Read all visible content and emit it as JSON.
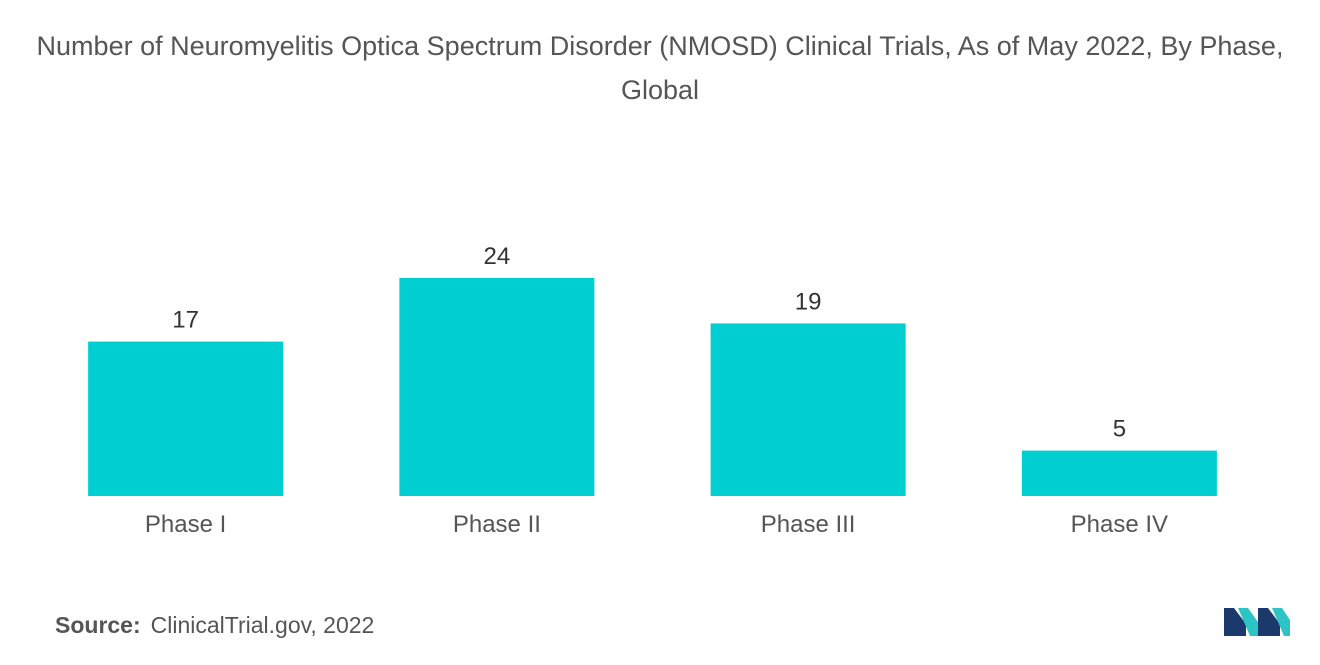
{
  "chart_data": {
    "type": "bar",
    "title": "Number of Neuromyelitis Optica Spectrum Disorder (NMOSD) Clinical Trials, As of May 2022, By Phase, Global",
    "categories": [
      "Phase I",
      "Phase II",
      "Phase III",
      "Phase IV"
    ],
    "values": [
      17,
      24,
      19,
      5
    ],
    "data_labels": [
      "17",
      "24",
      "19",
      "5"
    ],
    "xlabel": "",
    "ylabel": "",
    "ylim": [
      0,
      24
    ],
    "grid": false,
    "legend": "none",
    "colors": {
      "bar": "#00CED1",
      "label": "#333333",
      "tick": "#555555"
    }
  },
  "source": {
    "label": "Source:",
    "text": "ClinicalTrial.gov, 2022"
  },
  "logo": {
    "icon": "mordor-intelligence-logo",
    "colors": [
      "#1B3A6B",
      "#2EC4C6"
    ]
  }
}
